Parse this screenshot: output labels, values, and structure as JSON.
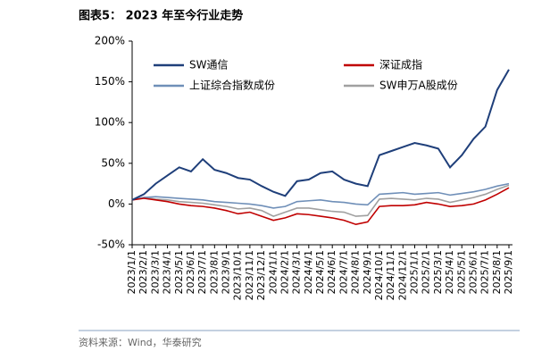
{
  "chart_data": {
    "type": "line",
    "title": "图表5： 2023 年至今行业走势",
    "source": "资料来源：Wind，华泰研究",
    "categories": [
      "2023/1/1",
      "2023/2/1",
      "2023/3/1",
      "2023/4/1",
      "2023/5/1",
      "2023/6/1",
      "2023/7/1",
      "2023/8/1",
      "2023/9/1",
      "2023/10/1",
      "2023/11/1",
      "2023/12/1",
      "2024/1/1",
      "2024/2/1",
      "2024/3/1",
      "2024/4/1",
      "2024/5/1",
      "2024/6/1",
      "2024/7/1",
      "2024/8/1",
      "2024/9/1",
      "2024/10/1",
      "2024/11/1",
      "2024/12/1",
      "2025/1/1",
      "2025/2/1",
      "2025/3/1",
      "2025/4/1",
      "2025/5/1",
      "2025/6/1",
      "2025/7/1",
      "2025/8/1",
      "2025/9/1"
    ],
    "ylim": [
      -50,
      200
    ],
    "yticks": [
      {
        "value": -50,
        "label": "-50%"
      },
      {
        "value": 0,
        "label": "0%"
      },
      {
        "value": 50,
        "label": "50%"
      },
      {
        "value": 100,
        "label": "100%"
      },
      {
        "value": 150,
        "label": "150%"
      },
      {
        "value": 200,
        "label": "200%"
      }
    ],
    "series": [
      {
        "name": "SW通信",
        "color": "#1f3f7a",
        "values": [
          5,
          12,
          25,
          35,
          45,
          40,
          55,
          42,
          38,
          32,
          30,
          22,
          15,
          10,
          28,
          30,
          38,
          40,
          30,
          25,
          22,
          60,
          65,
          70,
          75,
          72,
          68,
          45,
          60,
          80,
          95,
          140,
          165
        ]
      },
      {
        "name": "深证成指",
        "color": "#c00000",
        "values": [
          5,
          7,
          5,
          3,
          0,
          -2,
          -3,
          -5,
          -8,
          -12,
          -10,
          -15,
          -20,
          -17,
          -12,
          -13,
          -15,
          -17,
          -20,
          -25,
          -22,
          -3,
          -2,
          -2,
          -1,
          2,
          0,
          -3,
          -2,
          0,
          5,
          12,
          20
        ]
      },
      {
        "name": "上证综合指数成份",
        "color": "#6f8fb8",
        "values": [
          5,
          8,
          9,
          8,
          7,
          6,
          5,
          3,
          2,
          1,
          0,
          -2,
          -5,
          -3,
          3,
          4,
          5,
          3,
          2,
          0,
          -1,
          12,
          13,
          14,
          12,
          13,
          14,
          11,
          13,
          15,
          18,
          22,
          25
        ]
      },
      {
        "name": "SW申万A股成份",
        "color": "#a0a0a0",
        "values": [
          5,
          8,
          6,
          5,
          3,
          2,
          1,
          -1,
          -3,
          -6,
          -5,
          -8,
          -15,
          -10,
          -5,
          -5,
          -7,
          -9,
          -10,
          -15,
          -14,
          6,
          7,
          6,
          5,
          7,
          6,
          2,
          5,
          8,
          12,
          18,
          23
        ]
      }
    ]
  }
}
